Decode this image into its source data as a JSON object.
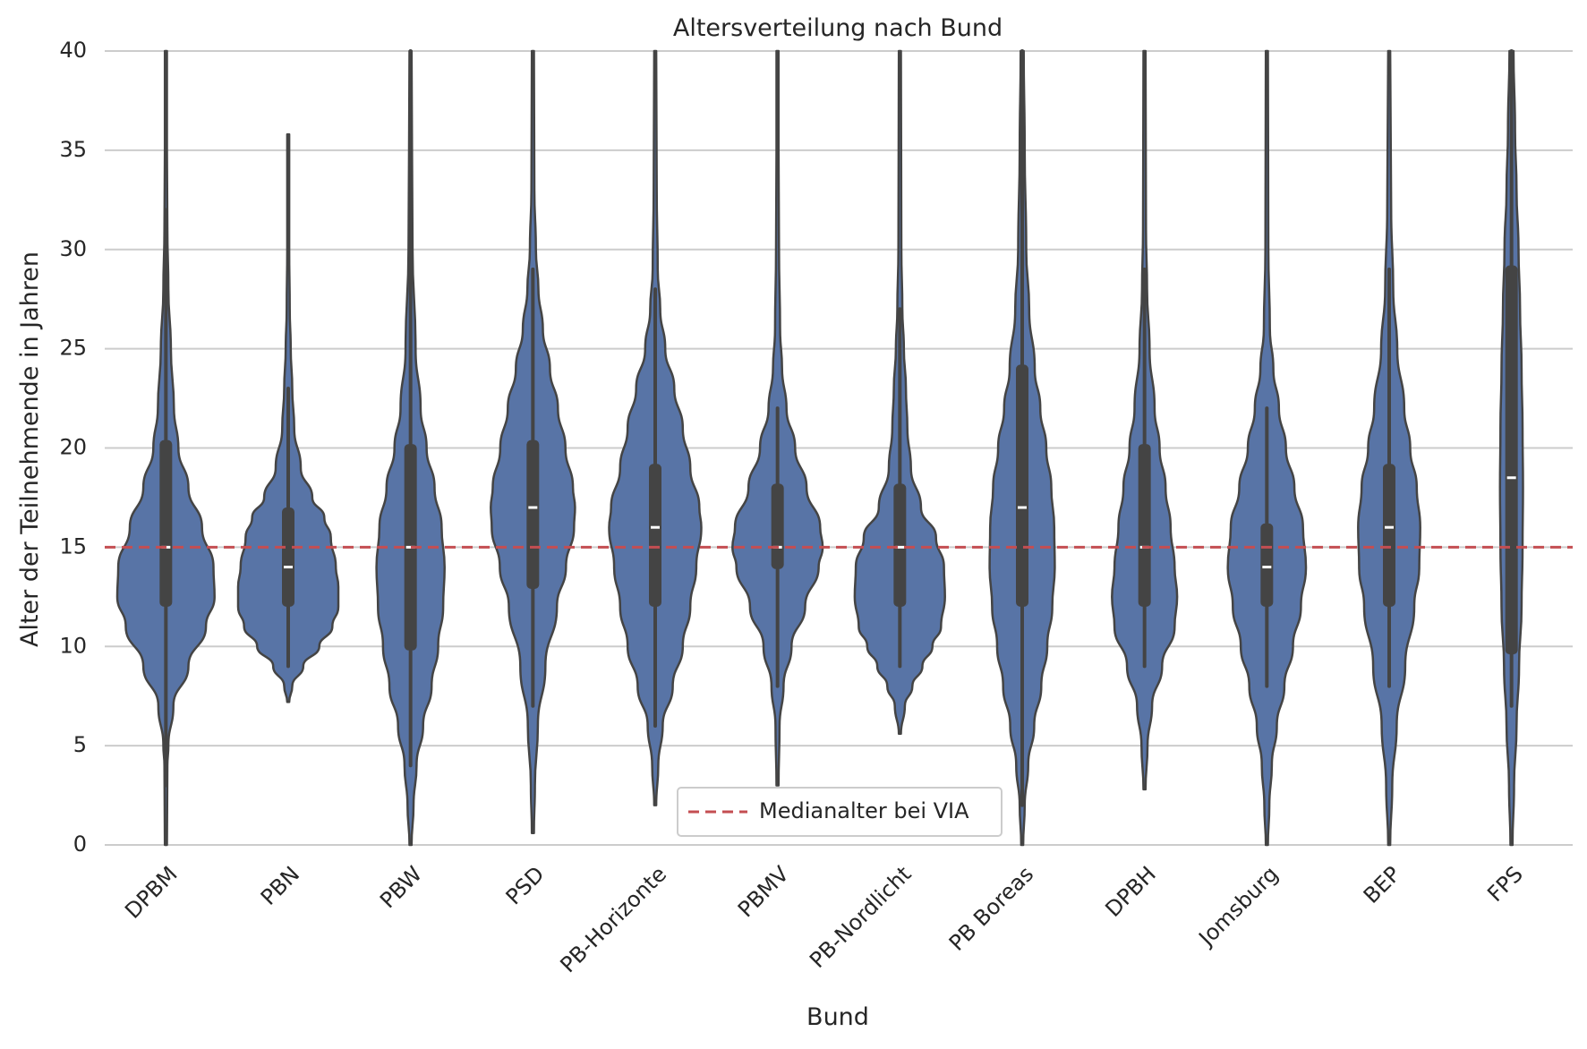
{
  "chart_data": {
    "type": "violin",
    "title": "Altersverteilung nach Bund",
    "xlabel": "Bund",
    "ylabel": "Alter der Teilnehmende in Jahren",
    "ylim": [
      0,
      40
    ],
    "yticks": [
      0,
      5,
      10,
      15,
      20,
      25,
      30,
      35,
      40
    ],
    "grid": "horizontal",
    "categories": [
      "DPBM",
      "PBN",
      "PBW",
      "PSD",
      "PB-Horizonte",
      "PBMV",
      "PB-Nordlicht",
      "PB Boreas",
      "DPBH",
      "Jomsburg",
      "BEP",
      "FPS"
    ],
    "series": [
      {
        "category": "DPBM",
        "median": 15,
        "q1": 12,
        "q3": 20.4,
        "whisker_low": 3,
        "whisker_high": 32,
        "min": 0,
        "max": 40,
        "density": [
          [
            0,
            0.02
          ],
          [
            4,
            0.03
          ],
          [
            5,
            0.05
          ],
          [
            7,
            0.15
          ],
          [
            9,
            0.45
          ],
          [
            11,
            0.8
          ],
          [
            12.5,
            0.97
          ],
          [
            14,
            0.95
          ],
          [
            16,
            0.72
          ],
          [
            18,
            0.45
          ],
          [
            20,
            0.25
          ],
          [
            22,
            0.16
          ],
          [
            25,
            0.1
          ],
          [
            28,
            0.05
          ],
          [
            31,
            0.03
          ],
          [
            35,
            0.02
          ],
          [
            40,
            0.02
          ]
        ]
      },
      {
        "category": "PBN",
        "median": 14,
        "q1": 12,
        "q3": 17,
        "whisker_low": 9,
        "whisker_high": 23,
        "min": 7.2,
        "max": 35.8,
        "density": [
          [
            7.2,
            0.02
          ],
          [
            8,
            0.08
          ],
          [
            9,
            0.3
          ],
          [
            10,
            0.62
          ],
          [
            11,
            0.88
          ],
          [
            12,
            1.0
          ],
          [
            13,
            1.0
          ],
          [
            14,
            0.95
          ],
          [
            15.5,
            0.85
          ],
          [
            16.5,
            0.72
          ],
          [
            17.5,
            0.48
          ],
          [
            19,
            0.25
          ],
          [
            21,
            0.12
          ],
          [
            23,
            0.08
          ],
          [
            25,
            0.05
          ],
          [
            27,
            0.03
          ],
          [
            30,
            0.02
          ],
          [
            35.8,
            0.02
          ]
        ]
      },
      {
        "category": "PBW",
        "median": 15,
        "q1": 9.8,
        "q3": 20.2,
        "whisker_low": 4,
        "whisker_high": 40,
        "min": 0,
        "max": 40,
        "density": [
          [
            0,
            0.02
          ],
          [
            2,
            0.06
          ],
          [
            4,
            0.12
          ],
          [
            6,
            0.25
          ],
          [
            8,
            0.42
          ],
          [
            10,
            0.55
          ],
          [
            12,
            0.65
          ],
          [
            14,
            0.68
          ],
          [
            16,
            0.62
          ],
          [
            18,
            0.48
          ],
          [
            20,
            0.32
          ],
          [
            22,
            0.2
          ],
          [
            25,
            0.1
          ],
          [
            30,
            0.04
          ],
          [
            35,
            0.03
          ],
          [
            40,
            0.02
          ]
        ]
      },
      {
        "category": "PSD",
        "median": 17,
        "q1": 12.9,
        "q3": 20.4,
        "whisker_low": 7,
        "whisker_high": 29,
        "min": 0.6,
        "max": 40,
        "density": [
          [
            0.6,
            0.02
          ],
          [
            3,
            0.04
          ],
          [
            6,
            0.1
          ],
          [
            9,
            0.25
          ],
          [
            12,
            0.48
          ],
          [
            14,
            0.66
          ],
          [
            16,
            0.82
          ],
          [
            17,
            0.84
          ],
          [
            18,
            0.8
          ],
          [
            20,
            0.65
          ],
          [
            22,
            0.5
          ],
          [
            24,
            0.34
          ],
          [
            26,
            0.2
          ],
          [
            28,
            0.11
          ],
          [
            30,
            0.06
          ],
          [
            33,
            0.03
          ],
          [
            40,
            0.02
          ]
        ]
      },
      {
        "category": "PB-Horizonte",
        "median": 16,
        "q1": 12,
        "q3": 19.2,
        "whisker_low": 6,
        "whisker_high": 28,
        "min": 2,
        "max": 40,
        "density": [
          [
            2,
            0.02
          ],
          [
            4,
            0.06
          ],
          [
            6,
            0.15
          ],
          [
            8,
            0.35
          ],
          [
            10,
            0.55
          ],
          [
            12,
            0.7
          ],
          [
            14,
            0.82
          ],
          [
            16,
            0.92
          ],
          [
            17,
            0.88
          ],
          [
            19,
            0.7
          ],
          [
            21,
            0.55
          ],
          [
            23,
            0.38
          ],
          [
            25,
            0.2
          ],
          [
            27,
            0.1
          ],
          [
            29,
            0.05
          ],
          [
            33,
            0.03
          ],
          [
            40,
            0.02
          ]
        ]
      },
      {
        "category": "PBMV",
        "median": 15,
        "q1": 13.9,
        "q3": 18.2,
        "whisker_low": 8,
        "whisker_high": 22,
        "min": 3,
        "max": 40,
        "density": [
          [
            3,
            0.02
          ],
          [
            6,
            0.04
          ],
          [
            8,
            0.12
          ],
          [
            10,
            0.28
          ],
          [
            12,
            0.55
          ],
          [
            14,
            0.82
          ],
          [
            15,
            0.9
          ],
          [
            16,
            0.85
          ],
          [
            18,
            0.58
          ],
          [
            20,
            0.35
          ],
          [
            22,
            0.18
          ],
          [
            24,
            0.09
          ],
          [
            26,
            0.05
          ],
          [
            30,
            0.03
          ],
          [
            35,
            0.02
          ],
          [
            40,
            0.02
          ]
        ]
      },
      {
        "category": "PB-Nordlicht",
        "median": 15,
        "q1": 12,
        "q3": 18.2,
        "whisker_low": 9,
        "whisker_high": 27,
        "min": 5.6,
        "max": 40,
        "density": [
          [
            5.6,
            0.02
          ],
          [
            7,
            0.1
          ],
          [
            8,
            0.25
          ],
          [
            9,
            0.45
          ],
          [
            10,
            0.65
          ],
          [
            11,
            0.82
          ],
          [
            12.5,
            0.9
          ],
          [
            14,
            0.88
          ],
          [
            15.5,
            0.72
          ],
          [
            17,
            0.42
          ],
          [
            19,
            0.22
          ],
          [
            21,
            0.15
          ],
          [
            23,
            0.12
          ],
          [
            25,
            0.08
          ],
          [
            27,
            0.05
          ],
          [
            30,
            0.03
          ],
          [
            40,
            0.02
          ]
        ]
      },
      {
        "category": "PB Boreas",
        "median": 17,
        "q1": 12,
        "q3": 24.2,
        "whisker_low": 2,
        "whisker_high": 40,
        "min": 0,
        "max": 40,
        "density": [
          [
            0,
            0.02
          ],
          [
            2,
            0.05
          ],
          [
            4,
            0.12
          ],
          [
            6,
            0.24
          ],
          [
            8,
            0.38
          ],
          [
            10,
            0.5
          ],
          [
            12,
            0.6
          ],
          [
            14,
            0.65
          ],
          [
            16,
            0.64
          ],
          [
            18,
            0.58
          ],
          [
            20,
            0.48
          ],
          [
            22,
            0.36
          ],
          [
            24,
            0.25
          ],
          [
            27,
            0.14
          ],
          [
            30,
            0.08
          ],
          [
            35,
            0.05
          ],
          [
            40,
            0.03
          ]
        ]
      },
      {
        "category": "DPBH",
        "median": 15,
        "q1": 12,
        "q3": 20.2,
        "whisker_low": 9,
        "whisker_high": 29,
        "min": 2.8,
        "max": 40,
        "density": [
          [
            2.8,
            0.02
          ],
          [
            5,
            0.06
          ],
          [
            7,
            0.15
          ],
          [
            9,
            0.35
          ],
          [
            11,
            0.6
          ],
          [
            12.5,
            0.65
          ],
          [
            14,
            0.6
          ],
          [
            16,
            0.52
          ],
          [
            18,
            0.42
          ],
          [
            20,
            0.3
          ],
          [
            22,
            0.2
          ],
          [
            25,
            0.1
          ],
          [
            28,
            0.05
          ],
          [
            31,
            0.03
          ],
          [
            40,
            0.02
          ]
        ]
      },
      {
        "category": "Jomsburg",
        "median": 14,
        "q1": 12,
        "q3": 16.2,
        "whisker_low": 8,
        "whisker_high": 22,
        "min": 0,
        "max": 40,
        "density": [
          [
            0,
            0.02
          ],
          [
            2,
            0.05
          ],
          [
            4,
            0.1
          ],
          [
            6,
            0.2
          ],
          [
            8,
            0.35
          ],
          [
            10,
            0.52
          ],
          [
            12,
            0.68
          ],
          [
            14,
            0.78
          ],
          [
            16,
            0.72
          ],
          [
            18,
            0.55
          ],
          [
            20,
            0.38
          ],
          [
            22,
            0.24
          ],
          [
            24,
            0.13
          ],
          [
            26,
            0.06
          ],
          [
            30,
            0.03
          ],
          [
            40,
            0.02
          ]
        ]
      },
      {
        "category": "BEP",
        "median": 16,
        "q1": 12,
        "q3": 19.2,
        "whisker_low": 8,
        "whisker_high": 29,
        "min": 0,
        "max": 40,
        "density": [
          [
            0,
            0.02
          ],
          [
            3,
            0.06
          ],
          [
            6,
            0.15
          ],
          [
            9,
            0.32
          ],
          [
            12,
            0.5
          ],
          [
            14,
            0.6
          ],
          [
            16,
            0.62
          ],
          [
            18,
            0.55
          ],
          [
            20,
            0.42
          ],
          [
            22,
            0.3
          ],
          [
            25,
            0.16
          ],
          [
            28,
            0.08
          ],
          [
            32,
            0.04
          ],
          [
            40,
            0.02
          ]
        ]
      },
      {
        "category": "FPS",
        "median": 18.5,
        "q1": 9.6,
        "q3": 29.2,
        "whisker_low": 7,
        "whisker_high": 40,
        "min": 0,
        "max": 40,
        "density": [
          [
            0,
            0.02
          ],
          [
            3,
            0.05
          ],
          [
            6,
            0.1
          ],
          [
            9,
            0.15
          ],
          [
            12,
            0.2
          ],
          [
            15,
            0.22
          ],
          [
            18,
            0.23
          ],
          [
            21,
            0.22
          ],
          [
            24,
            0.2
          ],
          [
            27,
            0.17
          ],
          [
            30,
            0.14
          ],
          [
            33,
            0.1
          ],
          [
            36,
            0.07
          ],
          [
            40,
            0.04
          ]
        ]
      }
    ],
    "reference_line": {
      "y": 15,
      "label": "Medianalter bei VIA",
      "color": "#c44e52",
      "style": "dashed"
    },
    "legend": {
      "position": "bottom-center",
      "entries": [
        "Medianalter bei VIA"
      ]
    },
    "colors": {
      "violin_fill": "#5874a6",
      "edge": "#444444",
      "grid": "#cccccc"
    }
  }
}
